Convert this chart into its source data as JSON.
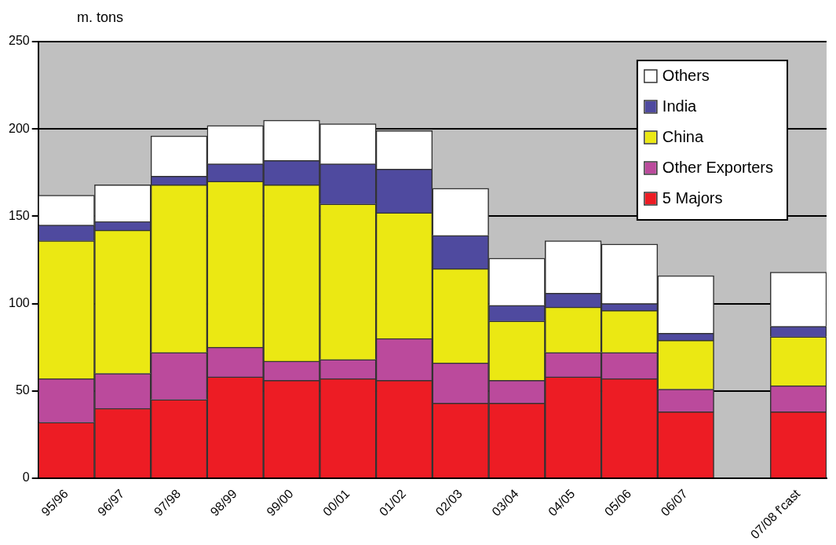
{
  "chart_data": {
    "type": "bar",
    "stacked": true,
    "ylabel": "m. tons",
    "categories": [
      "95/96",
      "96/97",
      "97/98",
      "98/99",
      "99/00",
      "00/01",
      "01/02",
      "02/03",
      "03/04",
      "04/05",
      "05/06",
      "06/07",
      null,
      "07/08 f'cast"
    ],
    "series": [
      {
        "name": "5 Majors",
        "color": "#ed1c24",
        "values": [
          32,
          40,
          45,
          58,
          56,
          57,
          56,
          43,
          43,
          58,
          57,
          38,
          null,
          38
        ]
      },
      {
        "name": "Other Exporters",
        "color": "#bb4a9c",
        "values": [
          25,
          20,
          27,
          17,
          11,
          11,
          24,
          23,
          13,
          14,
          15,
          13,
          null,
          15
        ]
      },
      {
        "name": "China",
        "color": "#ebe813",
        "values": [
          79,
          82,
          96,
          95,
          101,
          89,
          72,
          54,
          34,
          26,
          24,
          28,
          null,
          28
        ]
      },
      {
        "name": "India",
        "color": "#4f4a9f",
        "values": [
          9,
          5,
          5,
          10,
          14,
          23,
          25,
          19,
          9,
          8,
          4,
          4,
          null,
          6
        ]
      },
      {
        "name": "Others",
        "color": "#ffffff",
        "values": [
          17,
          21,
          23,
          22,
          23,
          23,
          22,
          27,
          27,
          30,
          34,
          33,
          null,
          31
        ]
      }
    ],
    "ylim": [
      0,
      250
    ],
    "yticks": [
      0,
      50,
      100,
      150,
      200,
      250
    ],
    "grid": "y",
    "legend": "top right"
  }
}
